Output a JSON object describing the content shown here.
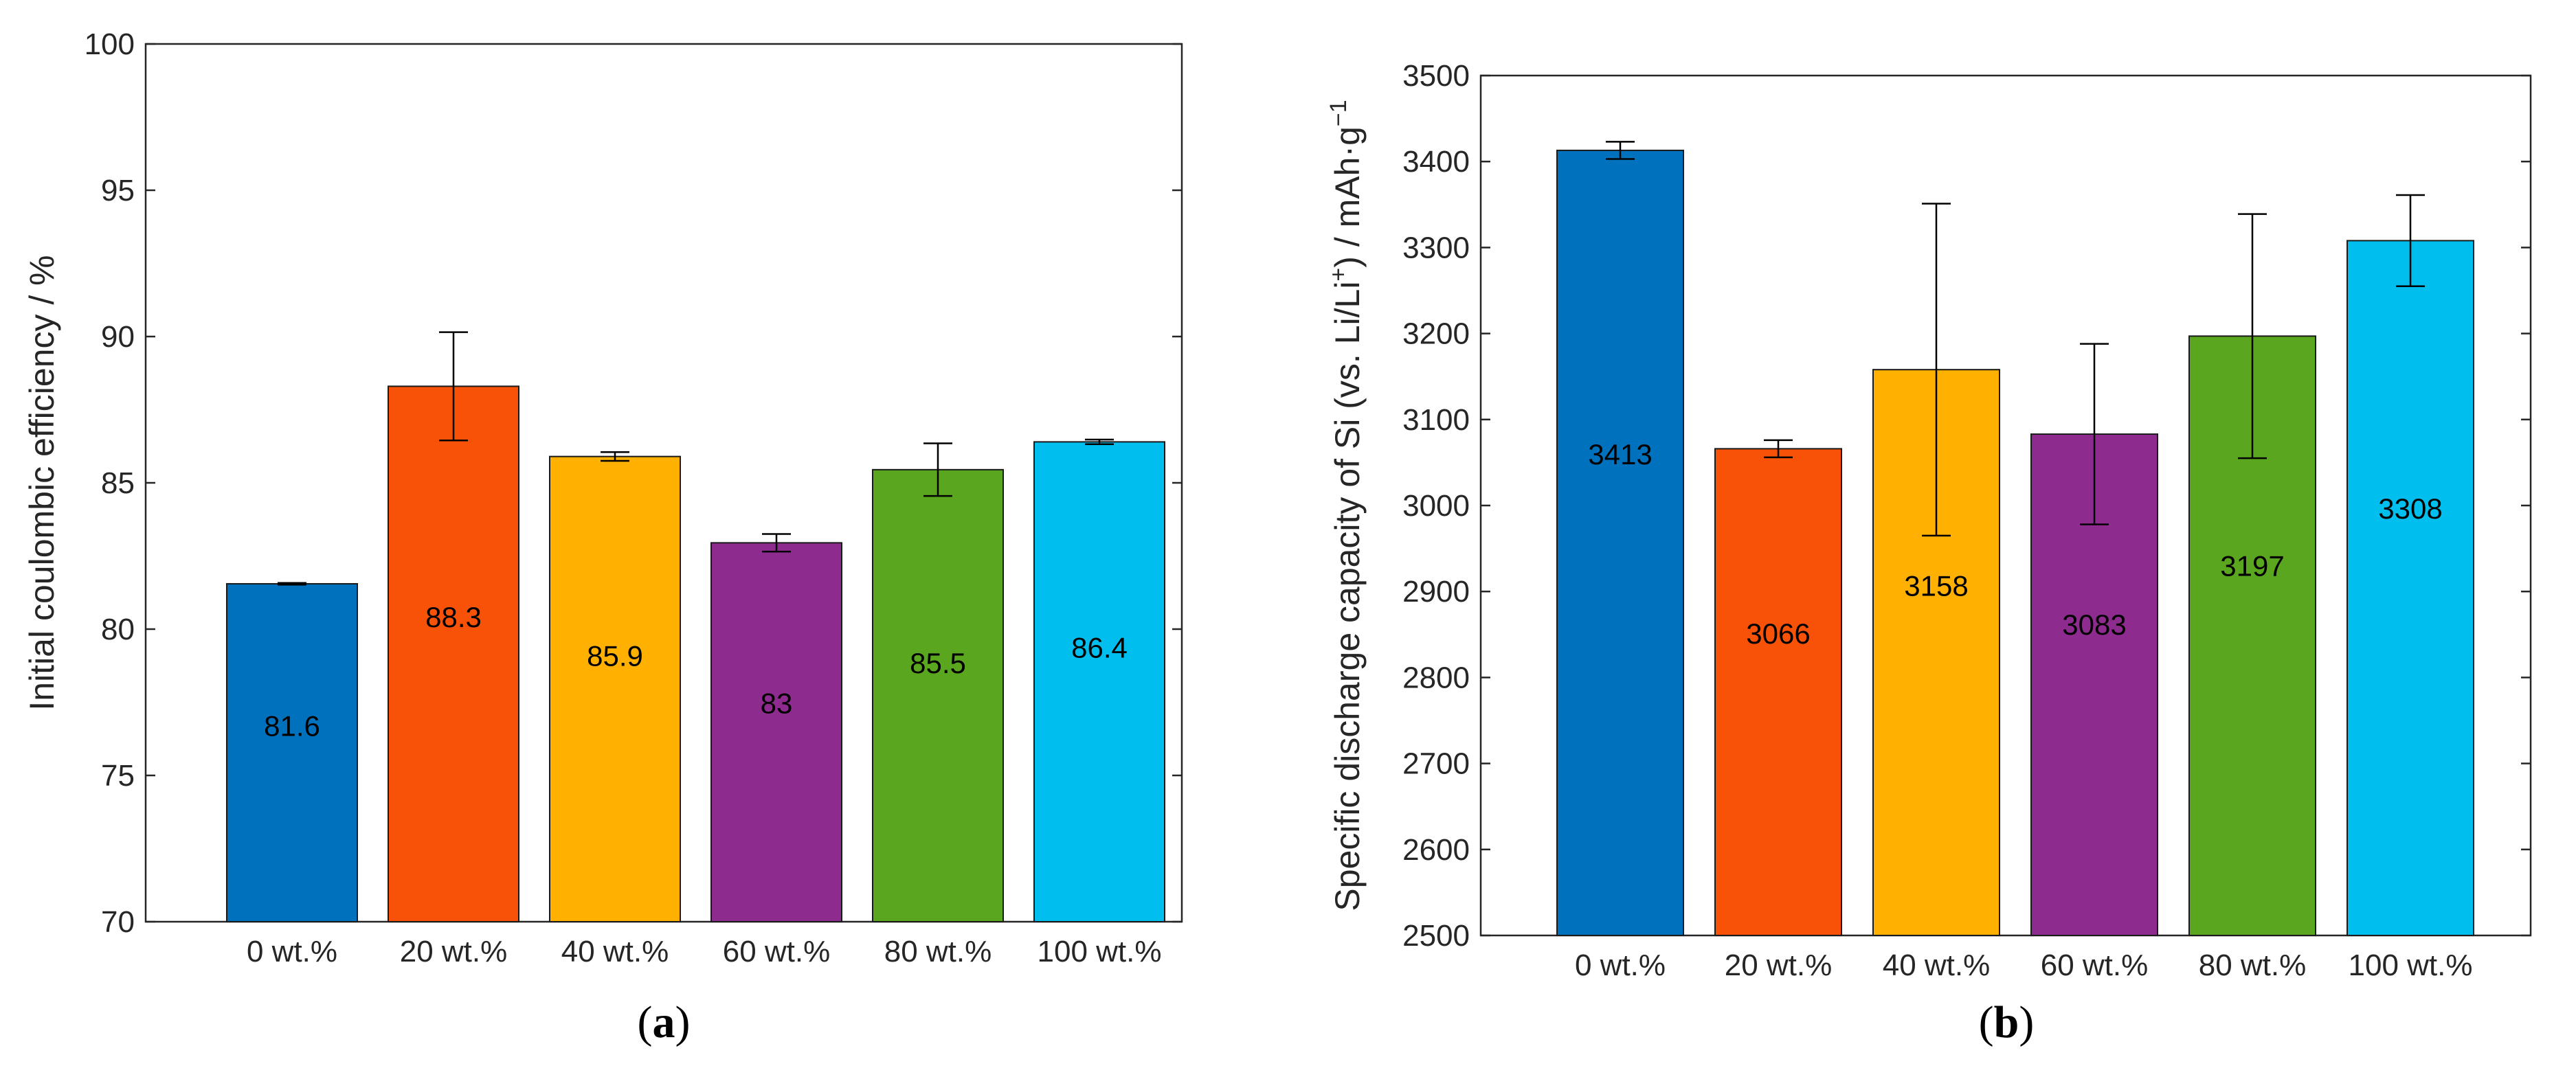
{
  "chart_data": [
    {
      "type": "bar",
      "caption": {
        "open": "(",
        "letter": "a",
        "close": ")"
      },
      "ylabel": "Initial coulombic efficiency / %",
      "ylim": [
        70,
        100
      ],
      "yticks": [
        "70",
        "75",
        "80",
        "85",
        "90",
        "95",
        "100"
      ],
      "categories": [
        "0 wt.%",
        "20 wt.%",
        "40 wt.%",
        "60 wt.%",
        "80 wt.%",
        "100 wt.%"
      ],
      "values": [
        81.55,
        88.3,
        85.9,
        82.95,
        85.45,
        86.4
      ],
      "labels": [
        "81.6",
        "88.3",
        "85.9",
        "83",
        "85.5",
        "86.4"
      ],
      "errors": [
        0.03,
        1.85,
        0.15,
        0.3,
        0.9,
        0.08
      ],
      "colors": [
        "#0072BD",
        "#F75208",
        "#FFB000",
        "#8E2B8E",
        "#5AA61E",
        "#00BFEF"
      ]
    },
    {
      "type": "bar",
      "caption": {
        "open": "(",
        "letter": "b",
        "close": ")"
      },
      "ylabel": {
        "main": "Specific discharge capacity of Si (vs. Li/Li",
        "sup1": "+",
        "mid": ") / mAh·g",
        "sup2": "−1"
      },
      "ylim": [
        2500,
        3500
      ],
      "yticks": [
        "2500",
        "2600",
        "2700",
        "2800",
        "2900",
        "3000",
        "3100",
        "3200",
        "3300",
        "3400",
        "3500"
      ],
      "categories": [
        "0 wt.%",
        "20 wt.%",
        "40 wt.%",
        "60 wt.%",
        "80 wt.%",
        "100 wt.%"
      ],
      "values": [
        3413,
        3066,
        3158,
        3083,
        3197,
        3308
      ],
      "labels": [
        "3413",
        "3066",
        "3158",
        "3083",
        "3197",
        "3308"
      ],
      "errors": [
        10,
        10,
        193,
        105,
        142,
        53
      ],
      "colors": [
        "#0072BD",
        "#F75208",
        "#FFB000",
        "#8E2B8E",
        "#5AA61E",
        "#00BFEF"
      ]
    }
  ]
}
